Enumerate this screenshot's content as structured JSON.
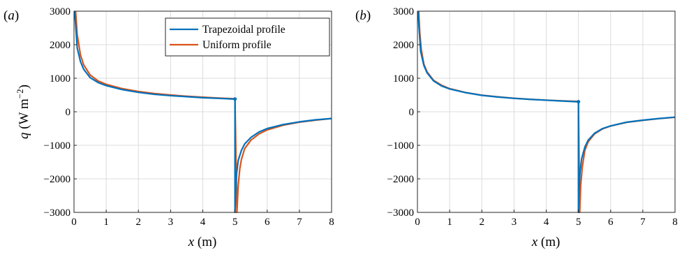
{
  "chart_data": [
    {
      "type": "line",
      "panel_label": "(a)",
      "xlabel": "x (m)",
      "ylabel": "q (W m−2)",
      "xlim": [
        0,
        8
      ],
      "ylim": [
        -3000,
        3000
      ],
      "xticks": [
        0,
        1,
        2,
        3,
        4,
        5,
        6,
        7,
        8
      ],
      "yticks": [
        -3000,
        -2000,
        -1000,
        0,
        1000,
        2000,
        3000
      ],
      "ytick_labels": [
        "−3000",
        "−2000",
        "−1000",
        "0",
        "1000",
        "2000",
        "3000"
      ],
      "grid": true,
      "legend": "top-right",
      "series": [
        {
          "name": "Trapezoidal profile",
          "color": "#0072bd",
          "x": [
            0.02,
            0.05,
            0.1,
            0.2,
            0.3,
            0.5,
            0.75,
            1,
            1.5,
            2,
            2.5,
            3,
            3.5,
            4,
            4.5,
            4.95,
            5.0,
            5.0,
            5.02,
            5.05,
            5.1,
            5.2,
            5.3,
            5.5,
            5.75,
            6,
            6.5,
            7,
            7.5,
            8
          ],
          "y": [
            3000,
            2600,
            1900,
            1500,
            1270,
            1020,
            870,
            780,
            660,
            580,
            520,
            480,
            450,
            420,
            400,
            380,
            380,
            -3000,
            -2400,
            -1850,
            -1450,
            -1150,
            -960,
            -760,
            -600,
            -500,
            -380,
            -300,
            -240,
            -200
          ]
        },
        {
          "name": "Uniform profile",
          "color": "#d95319",
          "x": [
            0.05,
            0.1,
            0.2,
            0.3,
            0.5,
            0.75,
            1,
            1.5,
            2,
            2.5,
            3,
            3.5,
            4,
            4.5,
            4.95,
            5.0,
            5.06,
            5.1,
            5.15,
            5.2,
            5.3,
            5.5,
            5.75,
            6,
            6.5,
            7,
            7.5,
            8
          ],
          "y": [
            3000,
            2300,
            1700,
            1400,
            1100,
            920,
            820,
            690,
            605,
            545,
            500,
            465,
            435,
            410,
            390,
            390,
            -3000,
            -2200,
            -1700,
            -1420,
            -1100,
            -840,
            -660,
            -540,
            -400,
            -310,
            -250,
            -200
          ]
        }
      ]
    },
    {
      "type": "line",
      "panel_label": "(b)",
      "xlabel": "x (m)",
      "ylabel": "",
      "xlim": [
        0,
        8
      ],
      "ylim": [
        -3000,
        3000
      ],
      "xticks": [
        0,
        1,
        2,
        3,
        4,
        5,
        6,
        7,
        8
      ],
      "yticks": [
        -3000,
        -2000,
        -1000,
        0,
        1000,
        2000,
        3000
      ],
      "ytick_labels": [
        "−3000",
        "−2000",
        "−1000",
        "0",
        "1000",
        "2000",
        "3000"
      ],
      "grid": true,
      "series": [
        {
          "color": "#0072bd",
          "x": [
            0.02,
            0.05,
            0.1,
            0.2,
            0.3,
            0.5,
            0.75,
            1,
            1.5,
            2,
            2.5,
            3,
            3.5,
            4,
            4.5,
            4.95,
            5.0,
            5.0,
            5.02,
            5.05,
            5.1,
            5.2,
            5.3,
            5.5,
            5.75,
            6,
            6.5,
            7,
            7.5,
            8
          ],
          "y": [
            3000,
            2500,
            1800,
            1380,
            1160,
            920,
            770,
            680,
            570,
            490,
            440,
            400,
            370,
            345,
            320,
            300,
            300,
            -3000,
            -2300,
            -1800,
            -1400,
            -1050,
            -850,
            -640,
            -500,
            -420,
            -310,
            -250,
            -200,
            -160
          ]
        },
        {
          "color": "#d95319",
          "x": [
            0.04,
            0.07,
            0.12,
            0.2,
            0.3,
            0.5,
            0.75,
            1,
            1.5,
            2,
            2.5,
            3,
            3.5,
            4,
            4.5,
            4.95,
            5.0,
            5.04,
            5.07,
            5.12,
            5.2,
            5.3,
            5.5,
            5.75,
            6,
            6.5,
            7,
            7.5,
            8
          ],
          "y": [
            3000,
            2400,
            1850,
            1420,
            1190,
            940,
            790,
            690,
            575,
            495,
            445,
            405,
            373,
            348,
            325,
            310,
            310,
            -3000,
            -2200,
            -1650,
            -1150,
            -900,
            -660,
            -510,
            -425,
            -315,
            -255,
            -205,
            -165
          ]
        }
      ]
    }
  ]
}
